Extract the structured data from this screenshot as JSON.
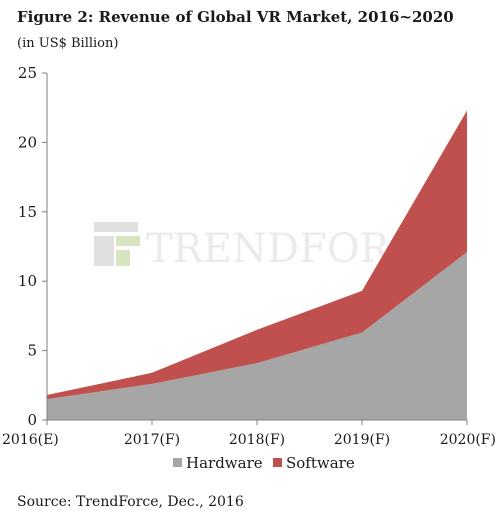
{
  "title": "Figure 2: Revenue of Global VR Market, 2016~2020",
  "subtitle": "(in US$ Billion)",
  "source": "Source: TrendForce, Dec., 2016",
  "watermark": "TRENDFORCE",
  "colors": {
    "hardware": "#a6a6a6",
    "software": "#c0504d",
    "axis": "#808080",
    "watermark_green": "#b5cf8c",
    "watermark_gray": "#c8c8c8"
  },
  "chart_data": {
    "type": "area",
    "stacked": true,
    "categories": [
      "2016(E)",
      "2017(F)",
      "2018(F)",
      "2019(F)",
      "2020(F)"
    ],
    "series": [
      {
        "name": "Hardware",
        "values": [
          1.5,
          2.6,
          4.1,
          6.3,
          12.1
        ]
      },
      {
        "name": "Software",
        "values": [
          0.3,
          0.8,
          2.4,
          3.0,
          10.2
        ]
      }
    ],
    "ylim": [
      0,
      25
    ],
    "yticks": [
      "0",
      "5",
      "10",
      "15",
      "20",
      "25"
    ],
    "xlabel": "",
    "ylabel": "",
    "legend_position": "bottom",
    "grid": false
  }
}
